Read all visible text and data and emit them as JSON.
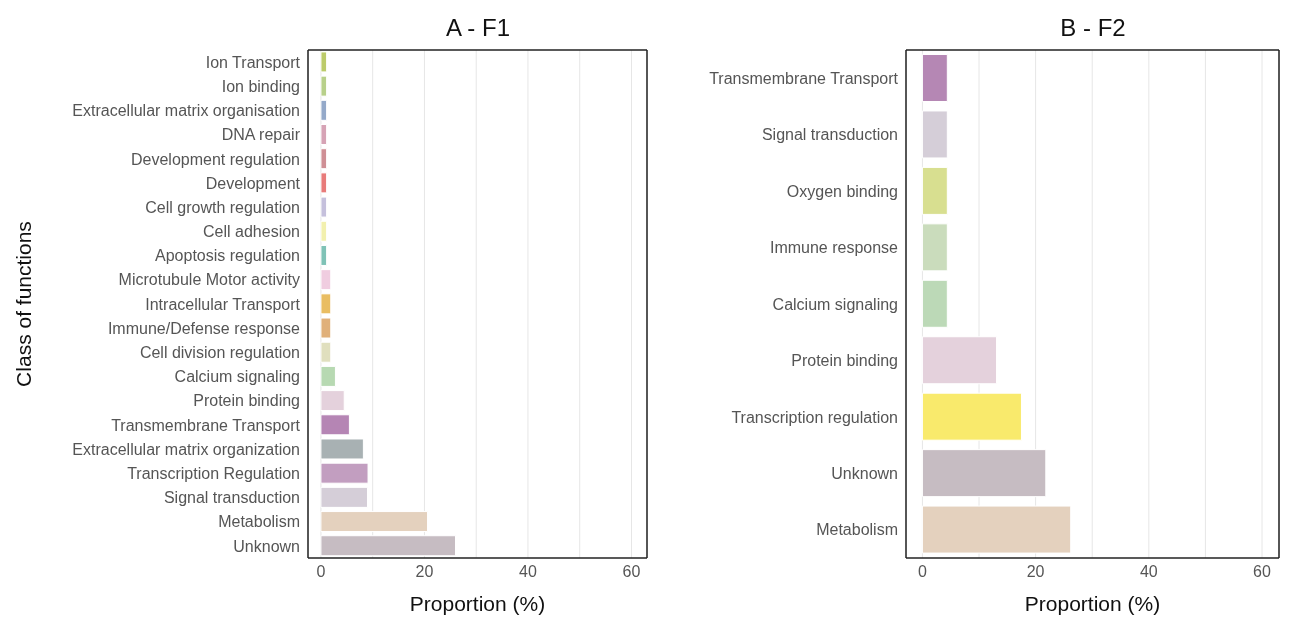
{
  "chart_data": [
    {
      "type": "bar",
      "orientation": "horizontal",
      "title": "A - F1",
      "xlabel": "Proportion (%)",
      "ylabel": "Class of functions",
      "categories": [
        "Ion Transport",
        "Ion binding",
        "Extracellular matrix organisation",
        "DNA repair",
        "Development regulation",
        "Development",
        "Cell growth regulation",
        "Cell adhesion",
        "Apoptosis regulation",
        "Microtubule Motor activity",
        "Intracellular Transport",
        "Immune/Defense response",
        "Cell division regulation",
        "Calcium signaling",
        "Protein binding",
        "Transmembrane Transport",
        "Extracellular matrix organization",
        "Transcription Regulation",
        "Signal transduction",
        "Metabolism",
        "Unknown"
      ],
      "values": [
        1.1,
        1.1,
        1.1,
        1.1,
        1.1,
        1.1,
        1.1,
        1.1,
        1.1,
        1.9,
        1.9,
        1.9,
        1.9,
        2.8,
        4.5,
        5.5,
        8.2,
        9.1,
        9.0,
        20.6,
        26.0
      ],
      "colors": [
        "#bccb6a",
        "#b8d08a",
        "#94a9c9",
        "#d6a3b5",
        "#cf8f95",
        "#e87b7a",
        "#c5c0dc",
        "#f2f0ae",
        "#7fc2b6",
        "#f0cde0",
        "#e9bd62",
        "#e0b07a",
        "#e0dfbe",
        "#b7d9b2",
        "#e4d1dc",
        "#b585b4",
        "#a8b1b3",
        "#c29ec0",
        "#d5ced8",
        "#e4d1be",
        "#c6bcc2"
      ],
      "xlim": [
        -2.5,
        63
      ],
      "xticks": [
        0,
        {
          "value": 10,
          "label": null
        },
        20,
        {
          "value": 30,
          "label": null
        },
        40,
        {
          "value": 50,
          "label": null
        },
        60
      ],
      "grid": "x"
    },
    {
      "type": "bar",
      "orientation": "horizontal",
      "title": "B - F2",
      "xlabel": "Proportion (%)",
      "categories": [
        "Transmembrane Transport",
        "Signal transduction",
        "Oxygen binding",
        "Immune response",
        "Calcium signaling",
        "Protein binding",
        "Transcription regulation",
        "Unknown",
        "Metabolism"
      ],
      "values": [
        4.4,
        4.4,
        4.4,
        4.4,
        4.4,
        13.1,
        17.5,
        21.8,
        26.2
      ],
      "colors": [
        "#b587b4",
        "#d5ced8",
        "#d8df90",
        "#cadcbc",
        "#bcd9b7",
        "#e4d1dc",
        "#f9ea6c",
        "#c6bcc2",
        "#e4d1be"
      ],
      "xlim": [
        -2.9,
        63
      ],
      "xticks": [
        0,
        {
          "value": 10,
          "label": null
        },
        20,
        {
          "value": 30,
          "label": null
        },
        40,
        {
          "value": 50,
          "label": null
        },
        60
      ],
      "grid": "x"
    }
  ]
}
